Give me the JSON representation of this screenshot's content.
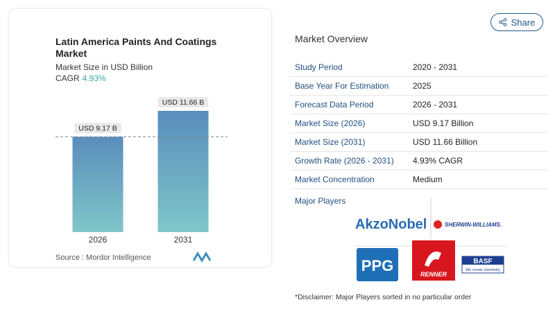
{
  "chart_data": {
    "type": "bar",
    "title": "Latin America Paints And Coatings Market",
    "subtitle": "Market Size in USD Billion",
    "cagr_label": "CAGR",
    "cagr_value": "4.93%",
    "categories": [
      "2026",
      "2031"
    ],
    "values": [
      9.17,
      11.66
    ],
    "value_labels": [
      "USD 9.17 B",
      "USD 11.66 B"
    ],
    "source_label": "Source :",
    "source": "Mordor Intelligence"
  },
  "share_button": "Share",
  "overview": {
    "title": "Market Overview",
    "rows": [
      [
        "Study Period",
        "2020 - 2031"
      ],
      [
        "Base Year For Estimation",
        "2025"
      ],
      [
        "Forecast Data Period",
        "2026 - 2031"
      ],
      [
        "Market Size (2026)",
        "USD 9.17 Billion"
      ],
      [
        "Market Size (2031)",
        "USD 11.66 Billion"
      ],
      [
        "Growth Rate (2026 - 2031)",
        "4.93% CAGR"
      ],
      [
        "Market Concentration",
        "Medium"
      ]
    ]
  },
  "major_players": {
    "title": "Major Players",
    "logos": [
      "AkzoNobel",
      "SHERWIN-WILLIAMS.",
      "PPG",
      "RENNER",
      "BASF",
      "We create chemistry"
    ]
  },
  "disclaimer": "*Disclaimer: Major Players sorted in no particular order"
}
